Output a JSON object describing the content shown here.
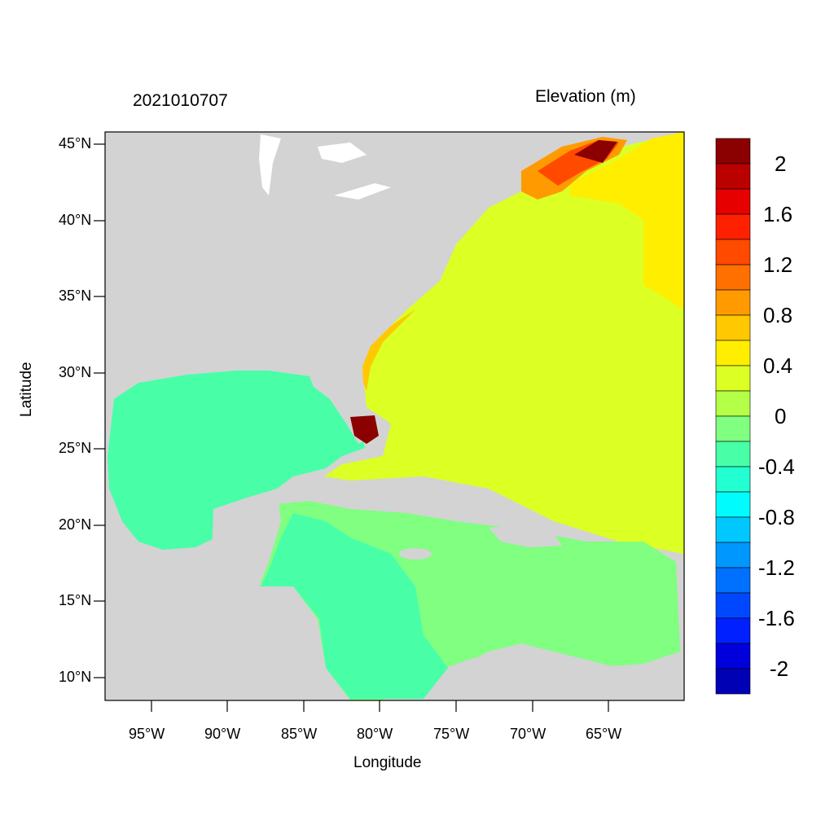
{
  "header": {
    "timestamp": "2021010707",
    "variable": "Elevation (m)"
  },
  "axes": {
    "x_title": "Longitude",
    "y_title": "Latitude",
    "x_ticks": [
      "95°W",
      "90°W",
      "85°W",
      "80°W",
      "75°W",
      "70°W",
      "65°W"
    ],
    "y_ticks": [
      "45°N",
      "40°N",
      "35°N",
      "30°N",
      "25°N",
      "20°N",
      "15°N",
      "10°N"
    ]
  },
  "colorbar": {
    "labels": [
      "2",
      "1.6",
      "1.2",
      "0.8",
      "0.4",
      "0",
      "-0.4",
      "-0.8",
      "-1.2",
      "-1.6",
      "-2"
    ],
    "colors": [
      "#8b0000",
      "#bb0000",
      "#e60000",
      "#ff2000",
      "#ff4a00",
      "#ff7000",
      "#ff9b00",
      "#ffc800",
      "#ffee00",
      "#dcff24",
      "#b4ff48",
      "#80ff80",
      "#48ffa8",
      "#22ffd0",
      "#00fcfc",
      "#00c8ff",
      "#0098ff",
      "#0070ff",
      "#0048ff",
      "#0020ff",
      "#0000dc",
      "#0000b4"
    ]
  },
  "colors": {
    "land": "#d3d3d3",
    "gulf": "#48ffa8",
    "atlantic": "#dcff24",
    "caribbean": "#80ff80",
    "north": "#ffee00"
  }
}
